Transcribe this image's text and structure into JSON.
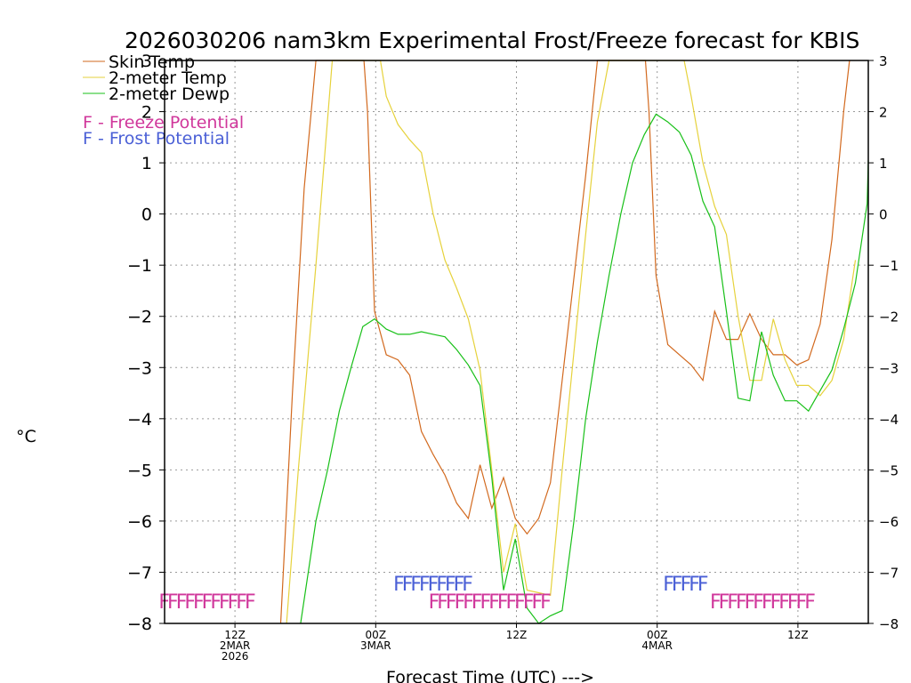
{
  "chart_data": {
    "type": "line",
    "title": "2026030206 nam3km Experimental Frost/Freeze forecast for KBIS",
    "xlabel": "Forecast Time (UTC) --->",
    "ylabel": "°C",
    "ylim": [
      -8,
      3
    ],
    "y_ticks": [
      -8,
      -7,
      -6,
      -5,
      -4,
      -3,
      -2,
      -1,
      0,
      1,
      2,
      3
    ],
    "xlim": [
      6,
      66
    ],
    "x_units": "hours after 00Z 2 Mar 2026",
    "grid": true,
    "x_ticks": [
      {
        "x": 12,
        "lines": [
          "12Z",
          "2MAR",
          "2026"
        ]
      },
      {
        "x": 24,
        "lines": [
          "00Z",
          "3MAR"
        ]
      },
      {
        "x": 36,
        "lines": [
          "12Z"
        ]
      },
      {
        "x": 48,
        "lines": [
          "00Z",
          "4MAR"
        ]
      },
      {
        "x": 60,
        "lines": [
          "12Z"
        ]
      }
    ],
    "legend_position": "top-left",
    "series": [
      {
        "name": "Skin Temp",
        "color": "#d2691e",
        "x": [
          15.9,
          16.9,
          17.9,
          18.9,
          23.0,
          23.3,
          23.9,
          24.9,
          25.9,
          26.9,
          27.9,
          28.9,
          29.9,
          30.9,
          31.9,
          32.9,
          33.9,
          34.9,
          35.9,
          36.9,
          37.9,
          38.9,
          39.9,
          40.9,
          41.9,
          42.9,
          43.9,
          47.0,
          47.3,
          47.9,
          48.9,
          49.9,
          50.9,
          51.9,
          52.9,
          53.9,
          54.9,
          55.9,
          56.9,
          57.9,
          58.9,
          59.9,
          60.9,
          61.9,
          62.9,
          63.9,
          64.4
        ],
        "values": [
          -8.0,
          -3.5,
          0.5,
          3.0,
          3.0,
          2.0,
          -1.9,
          -2.75,
          -2.85,
          -3.15,
          -4.25,
          -4.7,
          -5.1,
          -5.65,
          -5.95,
          -4.9,
          -5.75,
          -5.15,
          -5.95,
          -6.25,
          -5.95,
          -5.25,
          -3.25,
          -1.25,
          0.75,
          3.0,
          3.0,
          3.0,
          2.0,
          -1.2,
          -2.55,
          -2.75,
          -2.95,
          -3.25,
          -1.9,
          -2.45,
          -2.45,
          -1.95,
          -2.45,
          -2.75,
          -2.75,
          -2.95,
          -2.85,
          -2.15,
          -0.5,
          2.0,
          3.0
        ]
      },
      {
        "name": "2-meter Temp",
        "color": "#e6d23c",
        "x": [
          16.4,
          17.4,
          18.9,
          20.3,
          24.4,
          24.9,
          25.9,
          26.9,
          27.9,
          28.9,
          29.9,
          30.9,
          31.9,
          32.9,
          33.9,
          34.9,
          35.9,
          36.9,
          37.9,
          38.9,
          39.9,
          40.9,
          41.9,
          42.9,
          43.9,
          45.2,
          50.3,
          50.9,
          51.9,
          52.9,
          53.9,
          54.9,
          55.9,
          56.9,
          57.9,
          58.9,
          59.9,
          60.9,
          61.9,
          62.9,
          63.9,
          64.9
        ],
        "values": [
          -8.0,
          -5.0,
          -1.0,
          3.0,
          3.0,
          2.3,
          1.75,
          1.45,
          1.2,
          0.0,
          -0.9,
          -1.45,
          -2.05,
          -3.05,
          -5.0,
          -7.0,
          -6.05,
          -7.35,
          -7.4,
          -7.45,
          -5.0,
          -2.7,
          -0.4,
          1.8,
          3.0,
          3.0,
          3.0,
          2.3,
          1.0,
          0.15,
          -0.4,
          -2.0,
          -3.25,
          -3.25,
          -2.05,
          -2.85,
          -3.35,
          -3.35,
          -3.55,
          -3.25,
          -2.45,
          -0.9
        ]
      },
      {
        "name": "2-meter Dewp",
        "color": "#18c018",
        "x": [
          17.6,
          18.9,
          19.9,
          20.9,
          21.9,
          22.9,
          23.9,
          24.9,
          25.9,
          26.9,
          27.9,
          28.9,
          29.9,
          30.9,
          31.9,
          32.9,
          33.9,
          34.9,
          35.9,
          36.9,
          37.9,
          38.9,
          39.9,
          40.9,
          41.9,
          42.9,
          43.9,
          44.9,
          45.9,
          46.9,
          47.9,
          48.9,
          49.9,
          50.9,
          51.9,
          52.9,
          53.9,
          54.9,
          55.9,
          56.9,
          57.9,
          58.9,
          59.9,
          60.9,
          61.9,
          62.9,
          63.9,
          64.9,
          65.9,
          66.0
        ],
        "values": [
          -8.0,
          -6.0,
          -5.0,
          -3.85,
          -3.0,
          -2.2,
          -2.05,
          -2.25,
          -2.35,
          -2.35,
          -2.3,
          -2.35,
          -2.4,
          -2.65,
          -2.95,
          -3.35,
          -5.15,
          -7.35,
          -6.35,
          -7.7,
          -8.0,
          -7.85,
          -7.75,
          -6.0,
          -4.0,
          -2.5,
          -1.2,
          0.0,
          1.0,
          1.55,
          1.95,
          1.8,
          1.6,
          1.15,
          0.25,
          -0.25,
          -1.9,
          -3.6,
          -3.65,
          -2.3,
          -3.15,
          -3.65,
          -3.65,
          -3.85,
          -3.45,
          -3.05,
          -2.25,
          -1.35,
          0.2,
          1.05
        ]
      }
    ],
    "freeze_potential": {
      "legend": "F - Freeze Potential",
      "color": "#d0379b",
      "y_level": -7.55,
      "runs": [
        {
          "text": "FFFFFFFFFFF",
          "x_start": 5.5
        },
        {
          "text": "FFFFFFFFFFFFFF",
          "x_start": 28.5
        },
        {
          "text": "FFFFFFFFFFFF",
          "x_start": 52.5
        }
      ]
    },
    "frost_potential": {
      "legend": "F - Frost Potential",
      "color": "#4a5fd6",
      "y_level": -7.2,
      "runs": [
        {
          "text": "FFFFFFFFF",
          "x_start": 25.5
        },
        {
          "text": "FFFFF",
          "x_start": 48.5
        }
      ]
    }
  }
}
